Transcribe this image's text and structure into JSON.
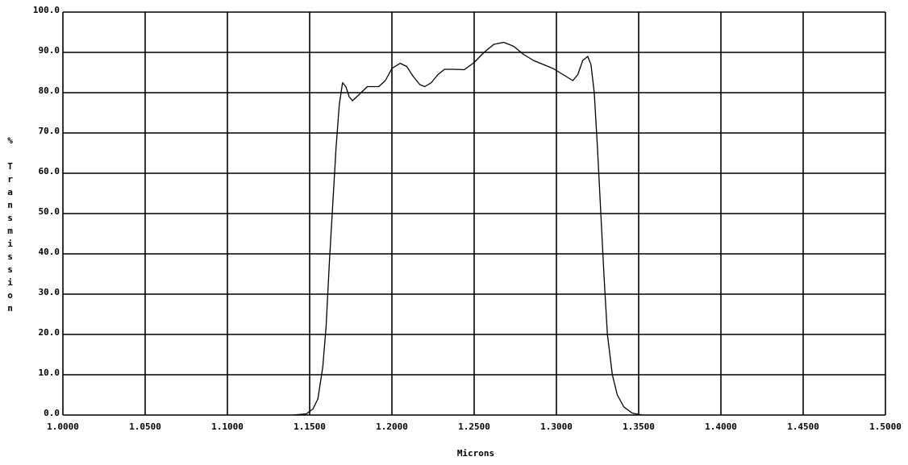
{
  "chart_data": {
    "type": "line",
    "xlabel": "Microns",
    "ylabel": "% Transmission",
    "x": [
      1.14,
      1.148,
      1.152,
      1.155,
      1.158,
      1.16,
      1.162,
      1.164,
      1.166,
      1.168,
      1.17,
      1.172,
      1.174,
      1.176,
      1.18,
      1.185,
      1.192,
      1.196,
      1.2,
      1.205,
      1.209,
      1.213,
      1.217,
      1.22,
      1.224,
      1.228,
      1.232,
      1.238,
      1.244,
      1.25,
      1.256,
      1.262,
      1.268,
      1.274,
      1.28,
      1.286,
      1.292,
      1.298,
      1.304,
      1.31,
      1.313,
      1.316,
      1.319,
      1.321,
      1.323,
      1.325,
      1.327,
      1.329,
      1.331,
      1.334,
      1.337,
      1.341,
      1.346,
      1.352
    ],
    "values": [
      0,
      0.3,
      1.5,
      4,
      12,
      22,
      38,
      52,
      66,
      77,
      82.5,
      81.5,
      79,
      78,
      79.5,
      81.5,
      81.5,
      83,
      86,
      87.3,
      86.5,
      84,
      82,
      81.5,
      82.5,
      84.5,
      85.8,
      85.8,
      85.7,
      87.5,
      90,
      92,
      92.5,
      91.5,
      89.5,
      88,
      87,
      86,
      84.5,
      83,
      84.5,
      88,
      89,
      87,
      80,
      66,
      50,
      34,
      20,
      10,
      5,
      2,
      0.5,
      0
    ],
    "color": "#000000",
    "xlim": [
      1.0,
      1.5
    ],
    "ylim": [
      0,
      100
    ],
    "xticks": [
      {
        "value": 1.0,
        "label": "1.0000"
      },
      {
        "value": 1.05,
        "label": "1.0500"
      },
      {
        "value": 1.1,
        "label": "1.1000"
      },
      {
        "value": 1.15,
        "label": "1.1500"
      },
      {
        "value": 1.2,
        "label": "1.2000"
      },
      {
        "value": 1.25,
        "label": "1.2500"
      },
      {
        "value": 1.3,
        "label": "1.3000"
      },
      {
        "value": 1.35,
        "label": "1.3500"
      },
      {
        "value": 1.4,
        "label": "1.4000"
      },
      {
        "value": 1.45,
        "label": "1.4500"
      },
      {
        "value": 1.5,
        "label": "1.5000"
      }
    ],
    "yticks": [
      {
        "value": 0,
        "label": "0.0"
      },
      {
        "value": 10,
        "label": "10.0"
      },
      {
        "value": 20,
        "label": "20.0"
      },
      {
        "value": 30,
        "label": "30.0"
      },
      {
        "value": 40,
        "label": "40.0"
      },
      {
        "value": 50,
        "label": "50.0"
      },
      {
        "value": 60,
        "label": "60.0"
      },
      {
        "value": 70,
        "label": "70.0"
      },
      {
        "value": 80,
        "label": "80.0"
      },
      {
        "value": 90,
        "label": "90.0"
      },
      {
        "value": 100,
        "label": "100.0"
      }
    ],
    "grid": true
  }
}
